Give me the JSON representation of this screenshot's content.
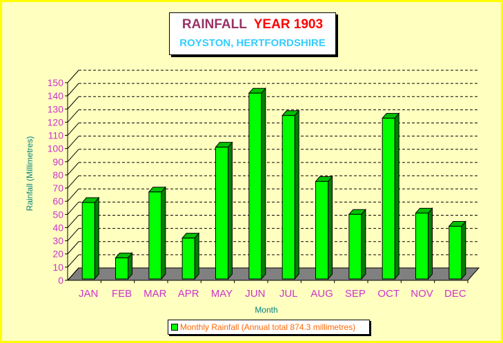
{
  "chart_data": {
    "type": "bar",
    "title": "RAINFALL",
    "title_year": "YEAR 1903",
    "subtitle": "ROYSTON, HERTFORDSHIRE",
    "xlabel": "Month",
    "ylabel": "Rainfall (Millimetres)",
    "categories": [
      "JAN",
      "FEB",
      "MAR",
      "APR",
      "MAY",
      "JUN",
      "JUL",
      "AUG",
      "SEP",
      "OCT",
      "NOV",
      "DEC"
    ],
    "series": [
      {
        "name": "Monthly Rainfall (Annual total 874.3 millimetres)",
        "values": [
          58,
          16,
          66,
          31,
          100,
          141,
          124,
          74,
          49,
          122,
          50,
          40
        ]
      }
    ],
    "ylim": [
      0,
      150
    ],
    "yticks": [
      0,
      10,
      20,
      30,
      40,
      50,
      60,
      70,
      80,
      90,
      100,
      110,
      120,
      130,
      140,
      150
    ],
    "grid": true,
    "legend_position": "bottom",
    "colors": {
      "bar_front": "#00ff00",
      "bar_side": "#008000",
      "bar_top": "#00c000",
      "floor": "#808080",
      "axis_text": "#cc33cc",
      "axis_title": "#008080",
      "background": "#ffffc0",
      "border": "#ffff00"
    }
  }
}
